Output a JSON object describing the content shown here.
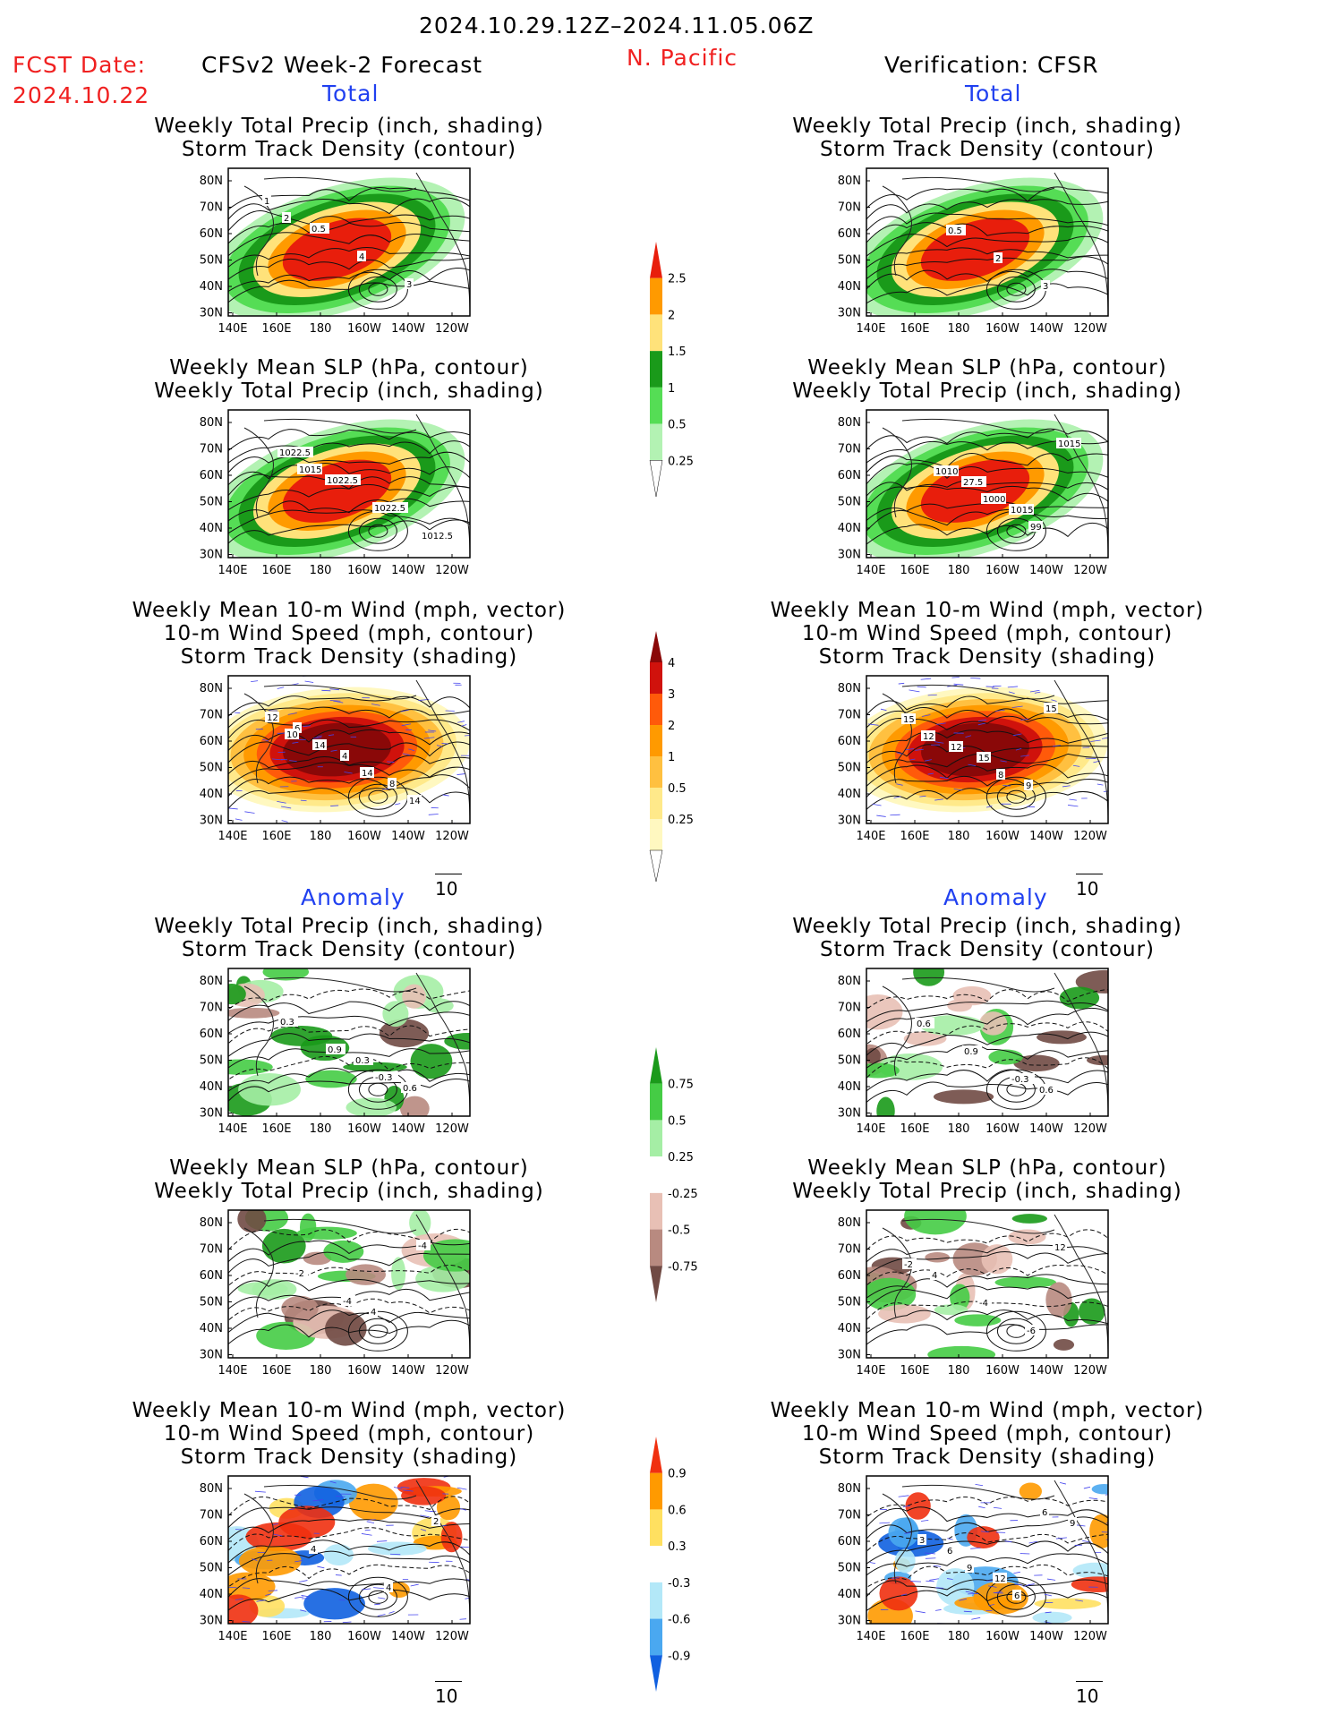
{
  "header": {
    "date_range": "2024.10.29.12Z–2024.11.05.06Z",
    "region": "N. Pacific",
    "fcst_label": "FCST Date:",
    "fcst_date": "2024.10.22",
    "left_title": "CFSv2 Week-2 Forecast",
    "right_title": "Verification: CFSR"
  },
  "sections": {
    "total": "Total",
    "anomaly": "Anomaly"
  },
  "panel_titles": {
    "precip_storm": [
      "Weekly Total Precip (inch, shading)",
      "Storm Track Density (contour)"
    ],
    "slp_precip": [
      "Weekly Mean SLP (hPa, contour)",
      "Weekly Total Precip (inch, shading)"
    ],
    "wind_storm": [
      "Weekly Mean 10-m Wind (mph, vector)",
      "10-m Wind Speed (mph, contour)",
      "Storm Track Density (shading)"
    ]
  },
  "axes": {
    "lat_labels": [
      "80N",
      "70N",
      "60N",
      "50N",
      "40N",
      "30N"
    ],
    "lon_labels": [
      "140E",
      "160E",
      "180",
      "160W",
      "140W",
      "120W"
    ]
  },
  "vector_ref": "10",
  "colorbars": [
    {
      "name": "precip-total",
      "labels": [
        "2.5",
        "2",
        "1.5",
        "1",
        "0.5",
        "0.25"
      ],
      "colors": [
        "#e81e0c",
        "#ff9a00",
        "#ffe27a",
        "#1a9a1a",
        "#55dd55",
        "#b3f2b3"
      ]
    },
    {
      "name": "storm-total",
      "labels": [
        "4",
        "3",
        "2",
        "1",
        "0.5",
        "0.25"
      ],
      "colors": [
        "#8a0808",
        "#d0120c",
        "#ff5a0a",
        "#ff9a00",
        "#ffc040",
        "#ffe98a",
        "#fff8c0"
      ]
    },
    {
      "name": "precip-anom",
      "labels": [
        "0.75",
        "0.5",
        "0.25",
        "-0.25",
        "-0.5",
        "-0.75"
      ],
      "colors": [
        "#1a9a1a",
        "#45cc45",
        "#a5eea5",
        "#ffffff",
        "#e8c0b5",
        "#b88a80",
        "#704a44"
      ]
    },
    {
      "name": "storm-anom",
      "labels": [
        "0.9",
        "0.6",
        "0.3",
        "-0.3",
        "-0.6",
        "-0.9"
      ],
      "colors": [
        "#f03010",
        "#ff9a00",
        "#ffe060",
        "#ffffff",
        "#b3e8f8",
        "#4aa8f0",
        "#1060e0"
      ]
    }
  ],
  "chart_data": [
    {
      "type": "heatmap",
      "panel": "forecast-total-precip-storm",
      "field": "precip_total",
      "contour_labels": [
        "1",
        "0.5",
        "4",
        "3",
        "2"
      ]
    },
    {
      "type": "heatmap",
      "panel": "forecast-total-slp-precip",
      "field": "precip_total",
      "contour_labels": [
        "1022.5",
        "1022.5",
        "1022.5",
        "1012.5",
        "1015"
      ]
    },
    {
      "type": "heatmap",
      "panel": "forecast-total-wind-storm",
      "field": "storm_total",
      "contour_labels": [
        "6",
        "4",
        "8",
        "12",
        "14",
        "14",
        "14",
        "10"
      ]
    },
    {
      "type": "heatmap",
      "panel": "verif-total-precip-storm",
      "field": "precip_total",
      "contour_labels": [
        "0.5",
        "2",
        "3"
      ]
    },
    {
      "type": "heatmap",
      "panel": "verif-total-slp-precip",
      "field": "precip_total",
      "contour_labels": [
        "27.5",
        "1015",
        "1015",
        "1010",
        "1000",
        "99"
      ]
    },
    {
      "type": "heatmap",
      "panel": "verif-total-wind-storm",
      "field": "storm_total",
      "contour_labels": [
        "15",
        "9",
        "15",
        "12",
        "8",
        "15",
        "12"
      ]
    },
    {
      "type": "heatmap",
      "panel": "forecast-anom-precip-storm",
      "field": "precip_anom",
      "contour_labels": [
        "0.3",
        "0.6",
        "0.3",
        "0.9",
        "-0.3"
      ]
    },
    {
      "type": "heatmap",
      "panel": "forecast-anom-slp-precip",
      "field": "precip_anom",
      "contour_labels": [
        "4",
        "-4",
        "-2",
        "-4"
      ]
    },
    {
      "type": "heatmap",
      "panel": "forecast-anom-wind-storm",
      "field": "storm_anom",
      "contour_labels": [
        "4",
        "2",
        "4"
      ]
    },
    {
      "type": "heatmap",
      "panel": "verif-anom-precip-storm",
      "field": "precip_anom",
      "contour_labels": [
        "0.6",
        "0.6",
        "0.9",
        "-0.3"
      ]
    },
    {
      "type": "heatmap",
      "panel": "verif-anom-slp-precip",
      "field": "precip_anom",
      "contour_labels": [
        "12",
        "4",
        "-4",
        "-6",
        "-2"
      ]
    },
    {
      "type": "heatmap",
      "panel": "verif-anom-wind-storm",
      "field": "storm_anom",
      "contour_labels": [
        "9",
        "6",
        "12",
        "6",
        "3",
        "9",
        "6"
      ]
    }
  ]
}
